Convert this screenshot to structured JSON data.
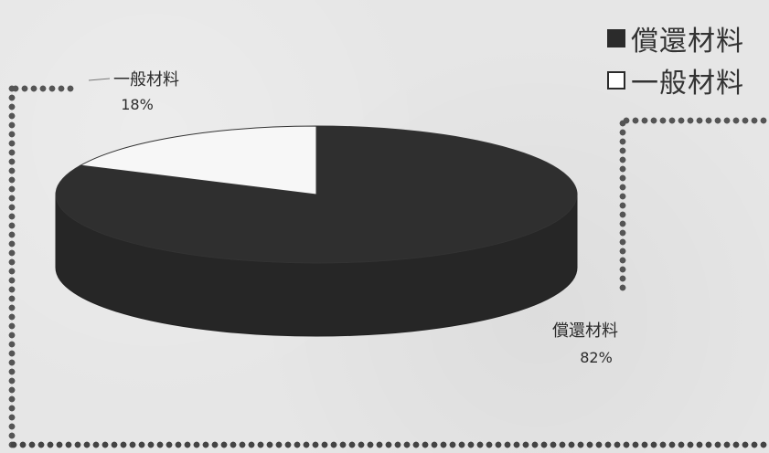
{
  "chart_data": {
    "type": "pie",
    "categories": [
      "償還材料",
      "一般材料"
    ],
    "values": [
      82,
      18
    ],
    "labels": [
      "償還材料",
      "一般材料"
    ],
    "percent_labels": [
      "82%",
      "18%"
    ],
    "title": "",
    "legend": "top-right",
    "colors": [
      "#2f2f2f",
      "#f7f7f7"
    ]
  },
  "legend": {
    "items": [
      {
        "label": "償還材料",
        "swatch": "filled"
      },
      {
        "label": "一般材料",
        "swatch": "empty"
      }
    ]
  },
  "slice_labels": [
    {
      "name": "償還材料",
      "percent": "82%"
    },
    {
      "name": "一般材料",
      "percent": "18%"
    }
  ]
}
